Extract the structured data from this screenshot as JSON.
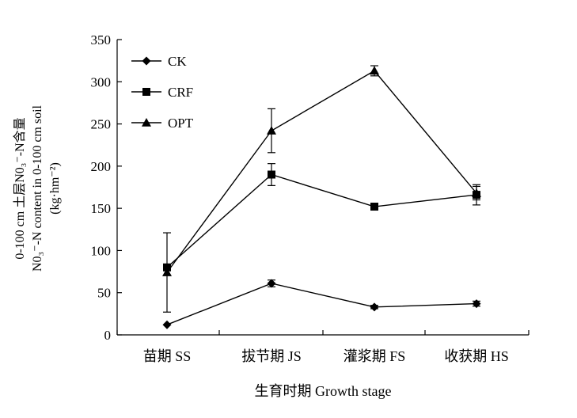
{
  "chart_data": {
    "type": "line",
    "title": "",
    "xlabel": "生育时期 Growth stage",
    "ylabel_lines": [
      "0-100 cm 土层N0₃⁻-N含量",
      "N0₃⁻-N content in 0-100 cm soil",
      "(kg·hm⁻²)"
    ],
    "categories": [
      "苗期 SS",
      "拔节期 JS",
      "灌浆期 FS",
      "收获期 HS"
    ],
    "ylim": [
      0,
      350
    ],
    "yticks": [
      "0",
      "50",
      "100",
      "150",
      "200",
      "250",
      "300",
      "350"
    ],
    "legend_position": "top-left",
    "grid": false,
    "series": [
      {
        "name": "CK",
        "marker": "diamond",
        "values": [
          12,
          61,
          33,
          37
        ],
        "errors": [
          0,
          4,
          2,
          3
        ]
      },
      {
        "name": "CRF",
        "marker": "square",
        "values": [
          80,
          190,
          152,
          166
        ],
        "errors": [
          0,
          13,
          4,
          12
        ]
      },
      {
        "name": "OPT",
        "marker": "triangle",
        "values": [
          74,
          242,
          313,
          168
        ],
        "errors": [
          47,
          26,
          6,
          8
        ]
      }
    ]
  }
}
